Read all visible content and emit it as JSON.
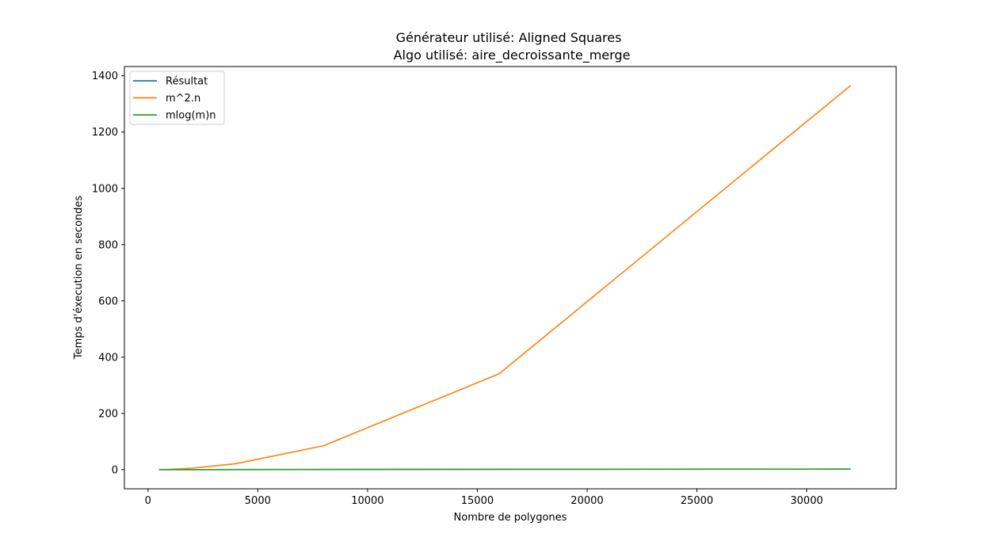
{
  "chart_data": {
    "type": "line",
    "title": "Générateur utilisé: Aligned Squares",
    "subtitle": "Algo utilisé: aire_decroissante_merge",
    "xlabel": "Nombre de polygones",
    "ylabel": "Temps d'éxecution en secondes",
    "xlim": [
      -1075,
      34075
    ],
    "ylim": [
      -68,
      1433
    ],
    "x_ticks": [
      0,
      5000,
      10000,
      15000,
      20000,
      25000,
      30000
    ],
    "y_ticks": [
      0,
      200,
      400,
      600,
      800,
      1000,
      1200,
      1400
    ],
    "x": [
      500,
      1000,
      2000,
      4000,
      8000,
      16000,
      32000
    ],
    "series": [
      {
        "name": "Résultat",
        "color": "#1f77b4",
        "values": [
          0.05,
          0.1,
          0.2,
          0.4,
          0.8,
          1.5,
          2.0
        ]
      },
      {
        "name": "m^2.n",
        "color": "#ff7f0e",
        "values": [
          0.33,
          1.33,
          5.33,
          21.3,
          85.3,
          341.3,
          1365.3
        ]
      },
      {
        "name": "mlog(m)n",
        "color": "#2ca02c",
        "values": [
          0.02,
          0.04,
          0.09,
          0.2,
          0.43,
          0.92,
          1.97
        ]
      }
    ],
    "legend_position": "top-left",
    "grid": false
  }
}
